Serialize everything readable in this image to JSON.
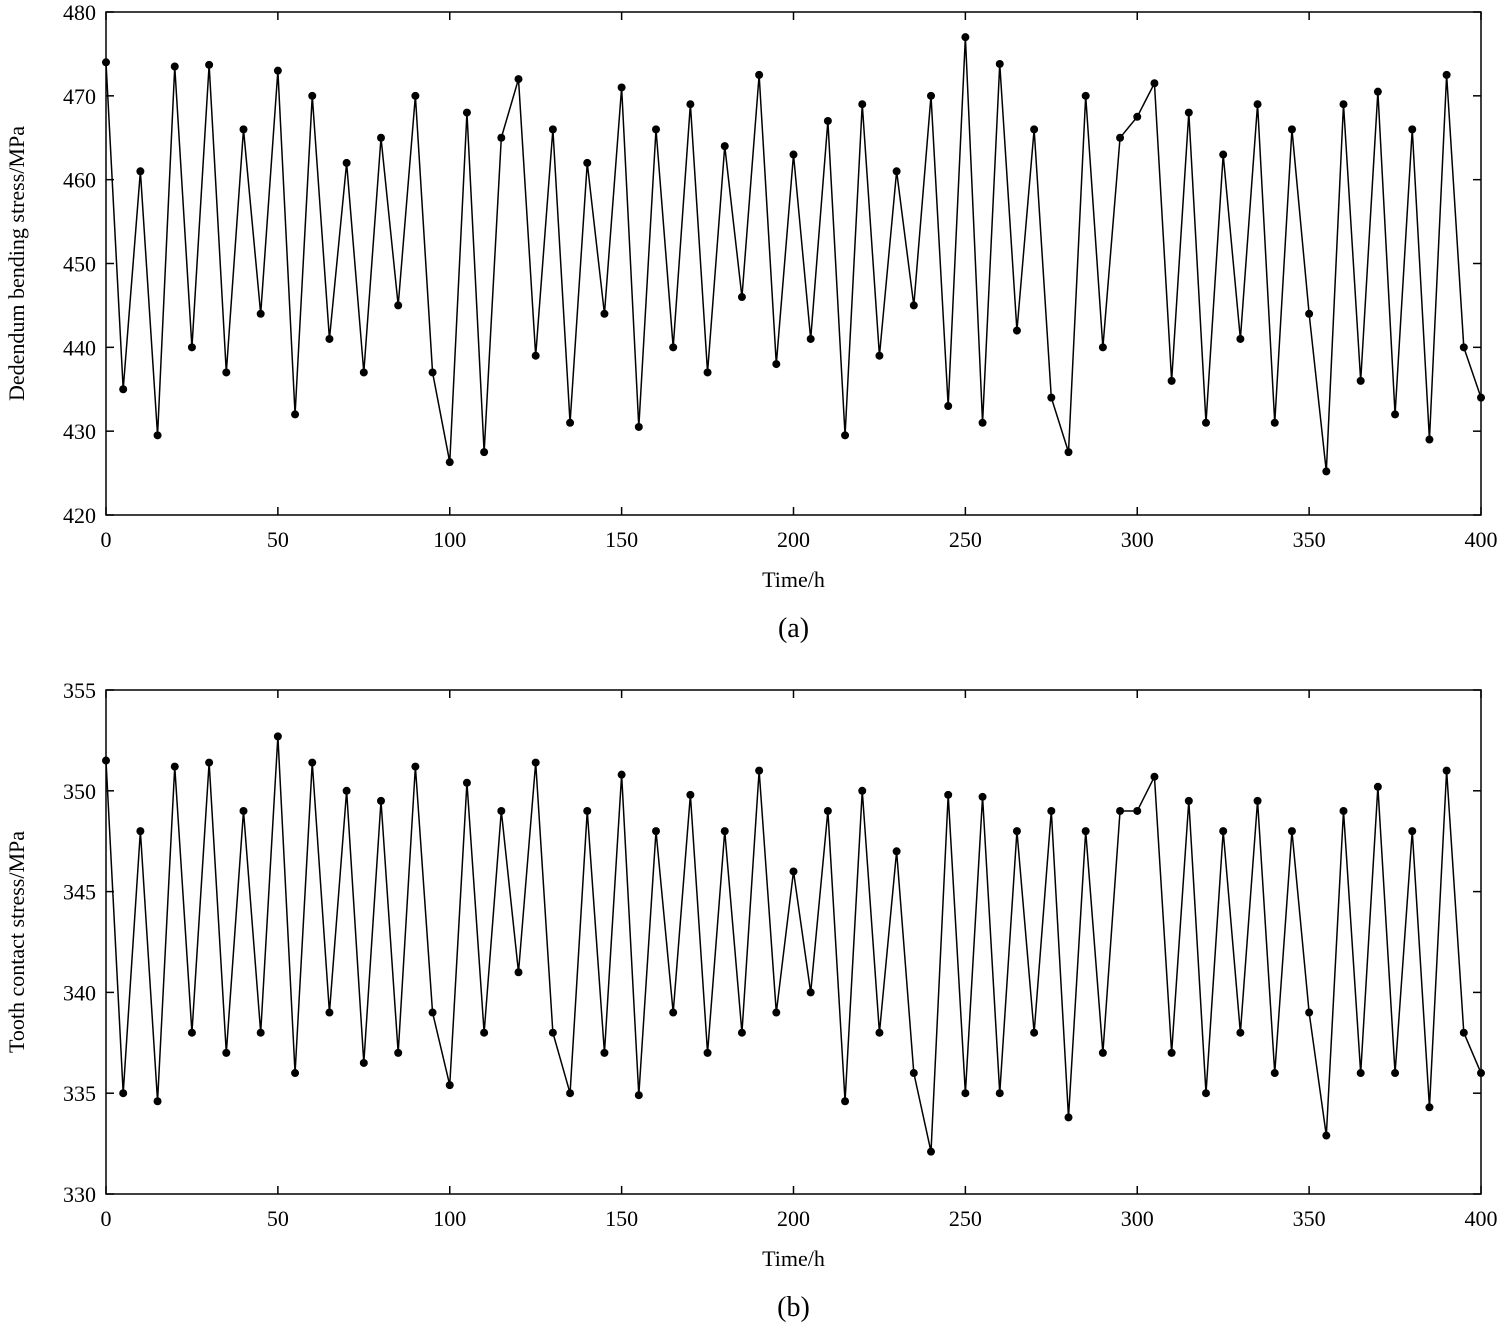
{
  "chart_data": [
    {
      "type": "line",
      "caption": "(a)",
      "xlabel": "Time/h",
      "ylabel": "Dedendum bending stress/MPa",
      "xlim": [
        0,
        400
      ],
      "xticks": [
        0,
        50,
        100,
        150,
        200,
        250,
        300,
        350,
        400
      ],
      "ylim": [
        420,
        480
      ],
      "yticks": [
        420,
        430,
        440,
        450,
        460,
        470,
        480
      ],
      "markers": true,
      "x": [
        0,
        5,
        10,
        15,
        20,
        25,
        30,
        35,
        40,
        45,
        50,
        55,
        60,
        65,
        70,
        75,
        80,
        85,
        90,
        95,
        100,
        105,
        110,
        115,
        120,
        125,
        130,
        135,
        140,
        145,
        150,
        155,
        160,
        165,
        170,
        175,
        180,
        185,
        190,
        195,
        200,
        205,
        210,
        215,
        220,
        225,
        230,
        235,
        240,
        245,
        250,
        255,
        260,
        265,
        270,
        275,
        280,
        285,
        290,
        295,
        300,
        305,
        310,
        315,
        320,
        325,
        330,
        335,
        340,
        345,
        350,
        355,
        360,
        365,
        370,
        375,
        380,
        385,
        390,
        395,
        400
      ],
      "series": [
        {
          "color": "#000000",
          "values": [
            474,
            435,
            461,
            429.5,
            473.5,
            440,
            473.7,
            437,
            466,
            444,
            473,
            432,
            470,
            441,
            462,
            437,
            465,
            445,
            470,
            437,
            426.3,
            468,
            427.5,
            465,
            472,
            439,
            466,
            431,
            462,
            444,
            471,
            430.5,
            466,
            440,
            469,
            437,
            464,
            446,
            472.5,
            438,
            463,
            441,
            467,
            429.5,
            469,
            439,
            461,
            445,
            470,
            433,
            477,
            431,
            473.8,
            442,
            466,
            434,
            427.5,
            470,
            440,
            465,
            467.5,
            471.5,
            436,
            468,
            431,
            463,
            441,
            469,
            431,
            466,
            444,
            425.2,
            469,
            436,
            470.5,
            432,
            466,
            429,
            472.5,
            440,
            434
          ]
        }
      ]
    },
    {
      "type": "line",
      "caption": "(b)",
      "xlabel": "Time/h",
      "ylabel": "Tooth contact stress/MPa",
      "xlim": [
        0,
        400
      ],
      "xticks": [
        0,
        50,
        100,
        150,
        200,
        250,
        300,
        350,
        400
      ],
      "ylim": [
        330,
        355
      ],
      "yticks": [
        330,
        335,
        340,
        345,
        350,
        355
      ],
      "markers": true,
      "x": [
        0,
        5,
        10,
        15,
        20,
        25,
        30,
        35,
        40,
        45,
        50,
        55,
        60,
        65,
        70,
        75,
        80,
        85,
        90,
        95,
        100,
        105,
        110,
        115,
        120,
        125,
        130,
        135,
        140,
        145,
        150,
        155,
        160,
        165,
        170,
        175,
        180,
        185,
        190,
        195,
        200,
        205,
        210,
        215,
        220,
        225,
        230,
        235,
        240,
        245,
        250,
        255,
        260,
        265,
        270,
        275,
        280,
        285,
        290,
        295,
        300,
        305,
        310,
        315,
        320,
        325,
        330,
        335,
        340,
        345,
        350,
        355,
        360,
        365,
        370,
        375,
        380,
        385,
        390,
        395,
        400
      ],
      "series": [
        {
          "color": "#000000",
          "values": [
            351.5,
            335,
            348,
            334.6,
            351.2,
            338,
            351.4,
            337,
            349,
            338,
            352.7,
            336,
            351.4,
            339,
            350,
            336.5,
            349.5,
            337,
            351.2,
            339,
            335.4,
            350.4,
            338,
            349,
            341,
            351.4,
            338,
            335,
            349,
            337,
            350.8,
            334.9,
            348,
            339,
            349.8,
            337,
            348,
            338,
            351,
            339,
            346,
            340,
            349,
            334.6,
            350,
            338,
            347,
            336,
            332.1,
            349.8,
            335,
            349.7,
            335,
            348,
            338,
            349,
            333.8,
            348,
            337,
            349,
            349,
            350.7,
            337,
            349.5,
            335,
            348,
            338,
            349.5,
            336,
            348,
            339,
            332.9,
            349,
            336,
            350.2,
            336,
            348,
            334.3,
            351,
            338,
            336
          ]
        }
      ]
    }
  ]
}
